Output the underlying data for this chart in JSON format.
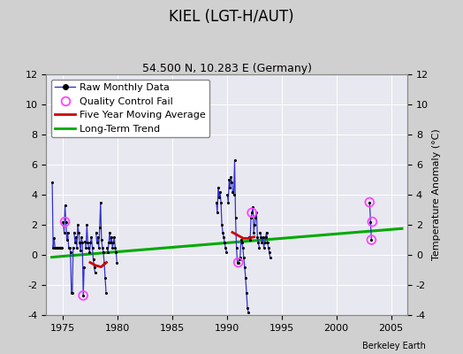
{
  "title": "KIEL (LGT-H/AUT)",
  "subtitle": "54.500 N, 10.283 E (Germany)",
  "ylabel_right": "Temperature Anomaly (°C)",
  "watermark": "Berkeley Earth",
  "xlim": [
    1973.5,
    2006.5
  ],
  "ylim": [
    -4,
    12
  ],
  "yticks": [
    -4,
    -2,
    0,
    2,
    4,
    6,
    8,
    10,
    12
  ],
  "xticks": [
    1975,
    1980,
    1985,
    1990,
    1995,
    2000,
    2005
  ],
  "fig_bg_color": "#d0d0d0",
  "plot_bg_color": "#e8e8f0",
  "grid_color": "#ffffff",
  "raw_years": [
    [
      1974,
      [
        4.8,
        0.5,
        1.1,
        0.5,
        0.5,
        0.5,
        0.5,
        0.5,
        0.5,
        0.5,
        0.5,
        0.5
      ]
    ],
    [
      1975,
      [
        2.2,
        1.5,
        3.3,
        2.2,
        1.0,
        1.5,
        0.5,
        0.5,
        0.2,
        -2.5,
        -2.5,
        0.5
      ]
    ],
    [
      1976,
      [
        1.5,
        0.8,
        1.2,
        0.5,
        2.0,
        1.5,
        0.8,
        0.3,
        1.2,
        0.8,
        -2.7,
        -0.8
      ]
    ],
    [
      1977,
      [
        0.9,
        0.5,
        2.0,
        0.8,
        0.5,
        0.2,
        0.8,
        1.2,
        0.5,
        -0.3,
        -0.8,
        -1.2
      ]
    ],
    [
      1978,
      [
        1.5,
        0.8,
        1.2,
        0.5,
        1.8,
        3.5,
        1.0,
        0.5,
        0.2,
        -0.5,
        -1.5,
        -2.5
      ]
    ],
    [
      1979,
      [
        0.5,
        0.2,
        0.8,
        1.5,
        0.8,
        1.2,
        0.5,
        0.8,
        1.2,
        0.5,
        0.2,
        -0.5
      ]
    ],
    [
      1989,
      [
        3.5,
        2.8,
        4.5,
        3.8,
        4.2,
        3.5,
        2.0,
        1.5,
        1.2,
        0.8,
        0.5,
        0.2
      ]
    ],
    [
      1990,
      [
        4.0,
        3.5,
        5.0,
        4.5,
        5.2,
        4.8,
        4.2,
        4.0,
        6.3,
        2.5,
        0.5,
        -0.5
      ]
    ],
    [
      1991,
      [
        -0.5,
        -0.3,
        -0.2,
        1.0,
        0.8,
        0.5,
        -0.2,
        -0.8,
        -1.5,
        -2.5,
        -3.5,
        -3.8
      ]
    ],
    [
      1992,
      [
        1.2,
        1.0,
        2.5,
        2.8,
        3.2,
        1.5,
        2.0,
        2.5,
        2.8,
        1.2,
        0.8,
        0.5
      ]
    ],
    [
      1993,
      [
        1.5,
        1.2,
        0.8,
        1.2,
        0.5,
        0.8,
        1.2,
        1.5,
        0.8,
        0.5,
        0.2,
        -0.2
      ]
    ],
    [
      2003,
      [
        3.5,
        2.2,
        1.0
      ]
    ]
  ],
  "qc_fail_points": [
    [
      1975.21,
      2.2
    ],
    [
      1976.87,
      -2.7
    ],
    [
      1991.04,
      -0.5
    ],
    [
      1992.29,
      2.8
    ],
    [
      2003.04,
      3.5
    ],
    [
      2003.29,
      2.2
    ],
    [
      2003.21,
      1.0
    ]
  ],
  "five_yr_segments": [
    {
      "x": [
        1977.5,
        1978.0,
        1978.5,
        1979.0
      ],
      "y": [
        -0.5,
        -0.7,
        -0.8,
        -0.5
      ]
    },
    {
      "x": [
        1990.5,
        1991.0,
        1991.5,
        1992.0,
        1992.5
      ],
      "y": [
        1.5,
        1.3,
        1.1,
        1.1,
        1.2
      ]
    }
  ],
  "trend_x": [
    1974.0,
    2006.0
  ],
  "trend_y": [
    -0.15,
    1.75
  ],
  "line_color": "#3333cc",
  "marker_color": "#000000",
  "qc_color": "#ff44ff",
  "five_yr_color": "#cc0000",
  "trend_color": "#00aa00",
  "title_fontsize": 12,
  "subtitle_fontsize": 9,
  "tick_fontsize": 8,
  "legend_fontsize": 8
}
